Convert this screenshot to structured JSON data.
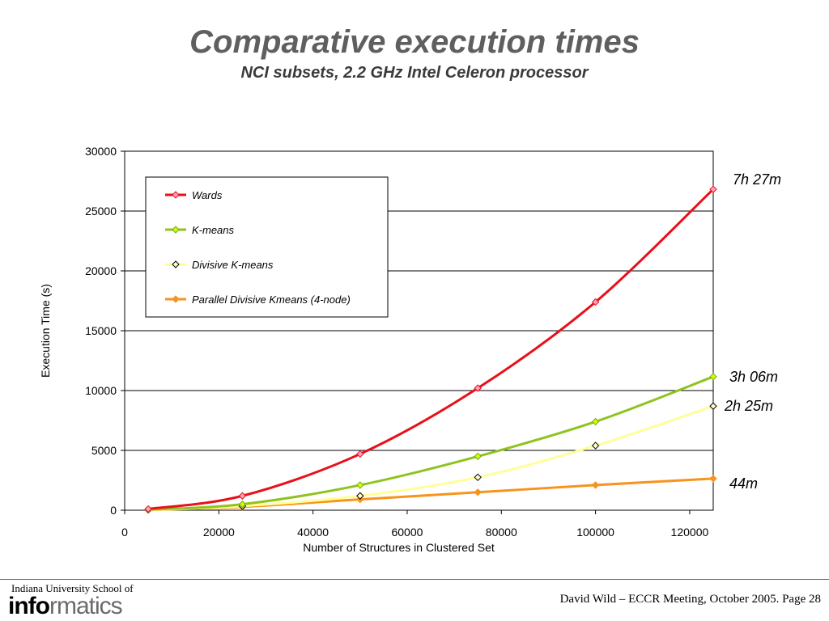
{
  "slide": {
    "title": "Comparative execution times",
    "subtitle": "NCI subsets, 2.2 GHz Intel Celeron processor"
  },
  "footer": {
    "institution_line": "Indiana University School of",
    "logo_text": "informatics",
    "logo_bold_part": "info",
    "logo_rest_part": "rmatics",
    "right_text": "David Wild – ECCR Meeting, October 2005.  Page 28"
  },
  "colors": {
    "wards": "#e8101a",
    "kmeans": "#8fc31f",
    "divisive": "#ffff99",
    "parallel": "#f7931e",
    "marker_wards": "#ff9fc0",
    "marker_kmeans": "#ccff00",
    "marker_divisive": "#ffffcc",
    "marker_parallel": "#f7931e"
  },
  "chart_data": {
    "type": "line",
    "title": "",
    "xlabel": "Number of Structures in Clustered Set",
    "ylabel": "Execution Time (s)",
    "xlim": [
      0,
      125000
    ],
    "ylim": [
      0,
      30000
    ],
    "xticks": [
      0,
      20000,
      40000,
      60000,
      80000,
      100000,
      120000
    ],
    "yticks": [
      0,
      5000,
      10000,
      15000,
      20000,
      25000,
      30000
    ],
    "grid": "horizontal",
    "legend_position": "top-left inside",
    "x": [
      5000,
      25000,
      50000,
      75000,
      100000,
      125000
    ],
    "series": [
      {
        "name": "Wards",
        "color_key": "wards",
        "values": [
          100,
          1200,
          4700,
          10200,
          17400,
          26820
        ]
      },
      {
        "name": "K-means",
        "color_key": "kmeans",
        "values": [
          50,
          500,
          2100,
          4500,
          7400,
          11160
        ]
      },
      {
        "name": "Divisive K-means",
        "color_key": "divisive",
        "values": [
          30,
          350,
          1200,
          2750,
          5400,
          8700
        ]
      },
      {
        "name": "Parallel Divisive Kmeans (4-node)",
        "color_key": "parallel",
        "values": [
          20,
          280,
          900,
          1500,
          2100,
          2640
        ]
      }
    ],
    "annotations": [
      {
        "text": "7h 27m",
        "series": "Wards"
      },
      {
        "text": "3h 06m",
        "series": "K-means"
      },
      {
        "text": "2h 25m",
        "series": "Divisive K-means"
      },
      {
        "text": "44m",
        "series": "Parallel Divisive Kmeans (4-node)"
      }
    ]
  }
}
